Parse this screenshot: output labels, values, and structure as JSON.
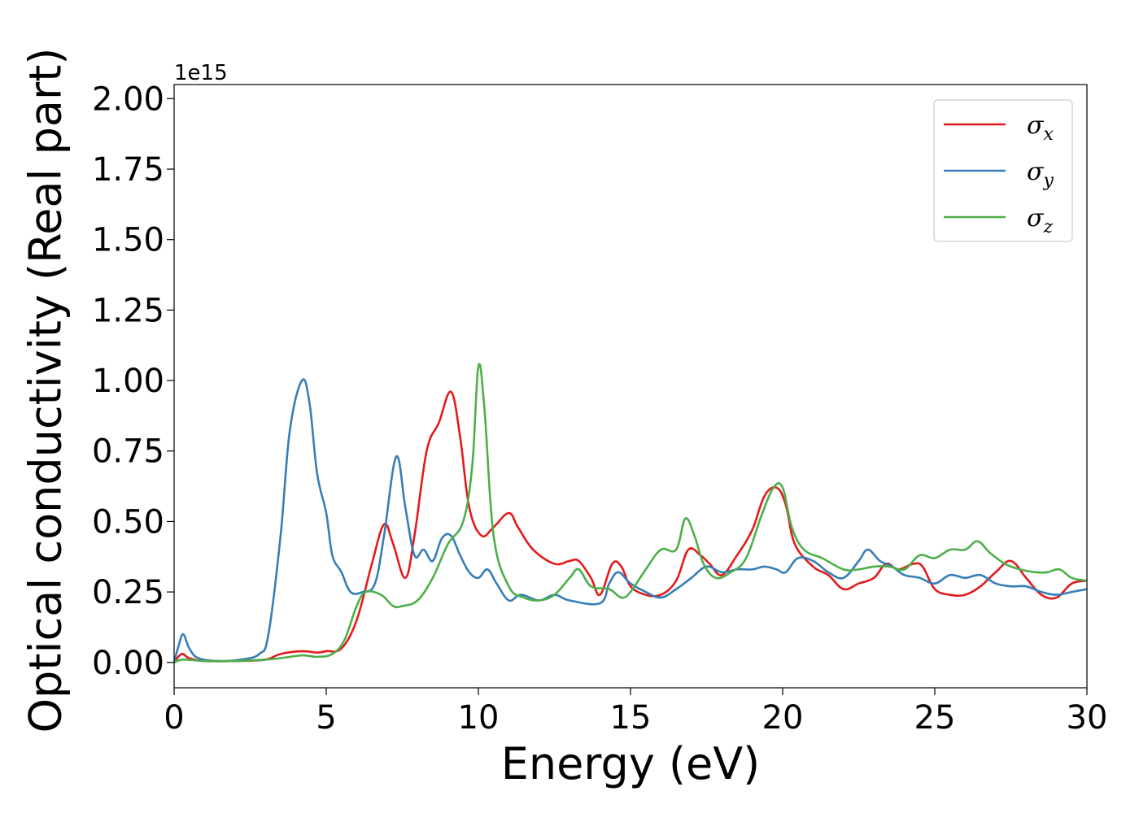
{
  "chart_data": {
    "type": "line",
    "xlabel": "Energy (eV)",
    "ylabel": "Optical conductivity (Real part)",
    "y_offset_label": "1e15",
    "xlim": [
      0,
      30
    ],
    "ylim": [
      -0.09,
      2.05
    ],
    "x_ticks": [
      0,
      5,
      10,
      15,
      20,
      25,
      30
    ],
    "x_tick_labels": [
      "0",
      "5",
      "10",
      "15",
      "20",
      "25",
      "30"
    ],
    "y_ticks": [
      0,
      0.25,
      0.5,
      0.75,
      1.0,
      1.25,
      1.5,
      1.75,
      2.0
    ],
    "y_tick_labels": [
      "0.00",
      "0.25",
      "0.50",
      "0.75",
      "1.00",
      "1.25",
      "1.50",
      "1.75",
      "2.00"
    ],
    "grid": false,
    "legend_position": "top-right",
    "series": [
      {
        "name": "σx",
        "name_base": "σ",
        "name_sub": "x",
        "color": "#e41a1c",
        "points": [
          [
            0,
            0.0
          ],
          [
            0.25,
            0.03
          ],
          [
            0.5,
            0.015
          ],
          [
            1,
            0.005
          ],
          [
            2,
            0.005
          ],
          [
            3,
            0.01
          ],
          [
            3.5,
            0.03
          ],
          [
            4.2,
            0.04
          ],
          [
            4.7,
            0.035
          ],
          [
            5,
            0.04
          ],
          [
            5.5,
            0.05
          ],
          [
            6,
            0.15
          ],
          [
            6.5,
            0.35
          ],
          [
            6.9,
            0.49
          ],
          [
            7.2,
            0.42
          ],
          [
            7.6,
            0.3
          ],
          [
            7.9,
            0.45
          ],
          [
            8.3,
            0.75
          ],
          [
            8.7,
            0.85
          ],
          [
            9.1,
            0.96
          ],
          [
            9.4,
            0.8
          ],
          [
            9.7,
            0.55
          ],
          [
            10.1,
            0.45
          ],
          [
            10.5,
            0.48
          ],
          [
            11,
            0.53
          ],
          [
            11.3,
            0.48
          ],
          [
            11.8,
            0.4
          ],
          [
            12.5,
            0.35
          ],
          [
            13,
            0.36
          ],
          [
            13.3,
            0.36
          ],
          [
            13.7,
            0.3
          ],
          [
            14,
            0.24
          ],
          [
            14.4,
            0.35
          ],
          [
            14.7,
            0.34
          ],
          [
            15,
            0.27
          ],
          [
            15.5,
            0.24
          ],
          [
            16,
            0.24
          ],
          [
            16.5,
            0.29
          ],
          [
            16.9,
            0.4
          ],
          [
            17.3,
            0.38
          ],
          [
            17.6,
            0.35
          ],
          [
            18,
            0.31
          ],
          [
            18.5,
            0.38
          ],
          [
            19,
            0.47
          ],
          [
            19.4,
            0.59
          ],
          [
            19.8,
            0.62
          ],
          [
            20.1,
            0.56
          ],
          [
            20.4,
            0.42
          ],
          [
            21,
            0.34
          ],
          [
            21.5,
            0.31
          ],
          [
            22,
            0.26
          ],
          [
            22.5,
            0.28
          ],
          [
            23,
            0.3
          ],
          [
            23.4,
            0.35
          ],
          [
            23.8,
            0.33
          ],
          [
            24.3,
            0.35
          ],
          [
            24.6,
            0.34
          ],
          [
            25,
            0.26
          ],
          [
            25.5,
            0.24
          ],
          [
            26,
            0.24
          ],
          [
            26.5,
            0.27
          ],
          [
            27,
            0.32
          ],
          [
            27.5,
            0.36
          ],
          [
            28,
            0.3
          ],
          [
            28.5,
            0.24
          ],
          [
            29,
            0.23
          ],
          [
            29.5,
            0.28
          ],
          [
            30,
            0.29
          ]
        ]
      },
      {
        "name": "σy",
        "name_base": "σ",
        "name_sub": "y",
        "color": "#377eb8",
        "points": [
          [
            0,
            0.0
          ],
          [
            0.15,
            0.06
          ],
          [
            0.3,
            0.1
          ],
          [
            0.5,
            0.05
          ],
          [
            0.8,
            0.015
          ],
          [
            1.5,
            0.005
          ],
          [
            2.2,
            0.01
          ],
          [
            2.8,
            0.03
          ],
          [
            3.1,
            0.1
          ],
          [
            3.5,
            0.45
          ],
          [
            3.8,
            0.82
          ],
          [
            4.2,
            1.0
          ],
          [
            4.45,
            0.92
          ],
          [
            4.7,
            0.67
          ],
          [
            5,
            0.53
          ],
          [
            5.2,
            0.38
          ],
          [
            5.5,
            0.32
          ],
          [
            5.8,
            0.25
          ],
          [
            6.2,
            0.25
          ],
          [
            6.6,
            0.28
          ],
          [
            6.9,
            0.45
          ],
          [
            7.3,
            0.73
          ],
          [
            7.6,
            0.55
          ],
          [
            7.9,
            0.38
          ],
          [
            8.2,
            0.4
          ],
          [
            8.5,
            0.36
          ],
          [
            8.8,
            0.44
          ],
          [
            9.1,
            0.45
          ],
          [
            9.4,
            0.38
          ],
          [
            9.7,
            0.32
          ],
          [
            10,
            0.3
          ],
          [
            10.3,
            0.33
          ],
          [
            10.6,
            0.28
          ],
          [
            11,
            0.22
          ],
          [
            11.4,
            0.24
          ],
          [
            12,
            0.22
          ],
          [
            12.5,
            0.24
          ],
          [
            13,
            0.22
          ],
          [
            14,
            0.21
          ],
          [
            14.3,
            0.28
          ],
          [
            14.6,
            0.32
          ],
          [
            15,
            0.28
          ],
          [
            15.5,
            0.25
          ],
          [
            16,
            0.23
          ],
          [
            16.5,
            0.26
          ],
          [
            17,
            0.3
          ],
          [
            17.5,
            0.34
          ],
          [
            18,
            0.32
          ],
          [
            18.5,
            0.33
          ],
          [
            19,
            0.33
          ],
          [
            19.4,
            0.34
          ],
          [
            19.8,
            0.33
          ],
          [
            20.1,
            0.32
          ],
          [
            20.5,
            0.37
          ],
          [
            21,
            0.36
          ],
          [
            21.5,
            0.32
          ],
          [
            22,
            0.3
          ],
          [
            22.5,
            0.36
          ],
          [
            22.8,
            0.4
          ],
          [
            23.2,
            0.36
          ],
          [
            23.6,
            0.34
          ],
          [
            24,
            0.31
          ],
          [
            24.5,
            0.3
          ],
          [
            25,
            0.28
          ],
          [
            25.5,
            0.31
          ],
          [
            26,
            0.3
          ],
          [
            26.5,
            0.31
          ],
          [
            27,
            0.28
          ],
          [
            27.5,
            0.27
          ],
          [
            28,
            0.27
          ],
          [
            28.5,
            0.25
          ],
          [
            29,
            0.24
          ],
          [
            29.5,
            0.25
          ],
          [
            30,
            0.26
          ]
        ]
      },
      {
        "name": "σz",
        "name_base": "σ",
        "name_sub": "z",
        "color": "#4daf4a",
        "points": [
          [
            0,
            0.0
          ],
          [
            0.3,
            0.01
          ],
          [
            1,
            0.005
          ],
          [
            2,
            0.005
          ],
          [
            3,
            0.01
          ],
          [
            3.5,
            0.015
          ],
          [
            4.2,
            0.025
          ],
          [
            4.7,
            0.02
          ],
          [
            5.2,
            0.03
          ],
          [
            5.6,
            0.08
          ],
          [
            6,
            0.2
          ],
          [
            6.3,
            0.25
          ],
          [
            6.8,
            0.24
          ],
          [
            7.2,
            0.2
          ],
          [
            7.5,
            0.2
          ],
          [
            8,
            0.22
          ],
          [
            8.5,
            0.3
          ],
          [
            9,
            0.42
          ],
          [
            9.5,
            0.5
          ],
          [
            9.8,
            0.7
          ],
          [
            10,
            1.05
          ],
          [
            10.2,
            0.9
          ],
          [
            10.5,
            0.45
          ],
          [
            11,
            0.27
          ],
          [
            11.5,
            0.23
          ],
          [
            12,
            0.22
          ],
          [
            12.5,
            0.24
          ],
          [
            13,
            0.3
          ],
          [
            13.3,
            0.33
          ],
          [
            13.7,
            0.27
          ],
          [
            14.3,
            0.26
          ],
          [
            14.7,
            0.23
          ],
          [
            15,
            0.25
          ],
          [
            15.5,
            0.33
          ],
          [
            16,
            0.4
          ],
          [
            16.5,
            0.4
          ],
          [
            16.8,
            0.51
          ],
          [
            17.1,
            0.45
          ],
          [
            17.4,
            0.35
          ],
          [
            17.8,
            0.3
          ],
          [
            18.3,
            0.32
          ],
          [
            18.8,
            0.37
          ],
          [
            19.3,
            0.52
          ],
          [
            19.7,
            0.62
          ],
          [
            20,
            0.62
          ],
          [
            20.3,
            0.48
          ],
          [
            20.7,
            0.4
          ],
          [
            21.3,
            0.37
          ],
          [
            22,
            0.33
          ],
          [
            22.5,
            0.33
          ],
          [
            23,
            0.34
          ],
          [
            23.5,
            0.34
          ],
          [
            24,
            0.33
          ],
          [
            24.5,
            0.38
          ],
          [
            25,
            0.37
          ],
          [
            25.5,
            0.4
          ],
          [
            26,
            0.4
          ],
          [
            26.4,
            0.43
          ],
          [
            26.8,
            0.39
          ],
          [
            27.3,
            0.35
          ],
          [
            27.8,
            0.33
          ],
          [
            28.3,
            0.32
          ],
          [
            28.7,
            0.32
          ],
          [
            29.1,
            0.33
          ],
          [
            29.5,
            0.3
          ],
          [
            30,
            0.29
          ]
        ]
      }
    ]
  }
}
